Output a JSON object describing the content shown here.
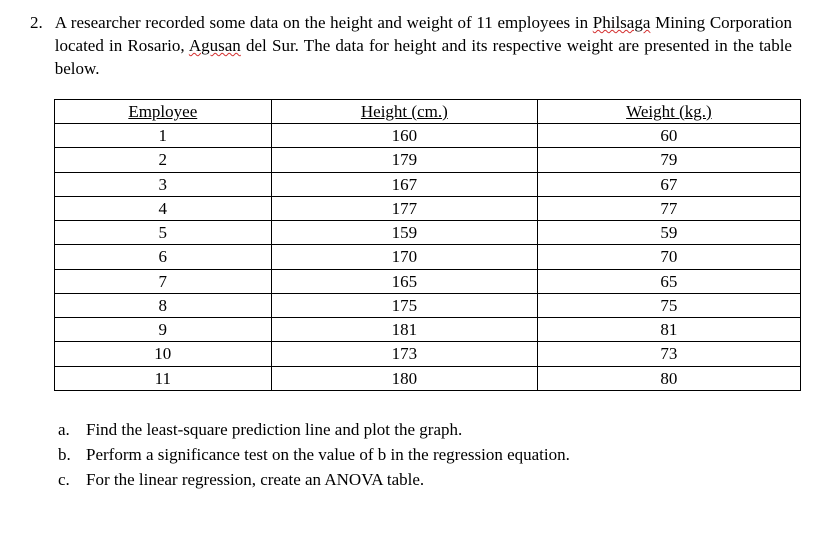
{
  "question": {
    "number": "2.",
    "text_part1": "A researcher recorded some data on the height and weight of 11 employees in ",
    "word_philsaga": "Philsaga",
    "text_part2": " Mining Corporation located in Rosario, ",
    "word_agusan": "Agusan",
    "text_part3": " del Sur. The data for height and its respective weight are presented in the table below."
  },
  "table": {
    "columns": [
      "Employee",
      "Height (cm.)",
      "Weight (kg.)"
    ],
    "rows": [
      [
        "1",
        "160",
        "60"
      ],
      [
        "2",
        "179",
        "79"
      ],
      [
        "3",
        "167",
        "67"
      ],
      [
        "4",
        "177",
        "77"
      ],
      [
        "5",
        "159",
        "59"
      ],
      [
        "6",
        "170",
        "70"
      ],
      [
        "7",
        "165",
        "65"
      ],
      [
        "8",
        "175",
        "75"
      ],
      [
        "9",
        "181",
        "81"
      ],
      [
        "10",
        "173",
        "73"
      ],
      [
        "11",
        "180",
        "80"
      ]
    ],
    "border_color": "#000000",
    "background_color": "#ffffff",
    "text_color": "#000000",
    "font_size": 17
  },
  "subquestions": {
    "a": {
      "letter": "a.",
      "text": "Find the least-square prediction line and plot the graph."
    },
    "b": {
      "letter": "b.",
      "text": "Perform a significance test on the value of b in the regression equation."
    },
    "c": {
      "letter": "c.",
      "text": "For the linear regression, create an ANOVA table."
    }
  },
  "styling": {
    "body_background": "#ffffff",
    "text_color": "#000000",
    "underline_color": "#d32f2f",
    "font_family": "Times New Roman"
  }
}
